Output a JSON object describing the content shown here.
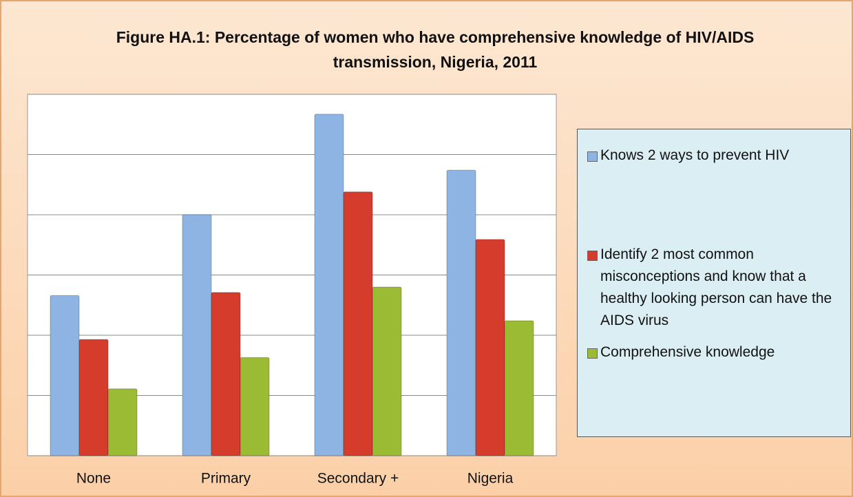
{
  "chart_data": {
    "type": "bar",
    "title": "Figure HA.1: Percentage of women who have comprehensive knowledge of HIV/AIDS transmission, Nigeria, 2011",
    "categories": [
      "None",
      "Primary",
      "Secondary +",
      "Nigeria"
    ],
    "series": [
      {
        "name": "Knows 2 ways to prevent HIV",
        "color": "#8db4e2",
        "values": [
          26.6,
          40.0,
          56.7,
          47.4
        ]
      },
      {
        "name": "Identify 2 most common misconceptions and know that a healthy looking person can have the AIDS virus",
        "color": "#d63c2c",
        "values": [
          19.3,
          27.1,
          43.8,
          35.9
        ]
      },
      {
        "name": "Comprehensive knowledge",
        "color": "#9bbb35",
        "values": [
          11.1,
          16.3,
          28.0,
          22.4
        ]
      }
    ],
    "ylim": [
      0,
      60
    ],
    "yticks": [
      0,
      10,
      20,
      30,
      40,
      50,
      60
    ],
    "grid": true,
    "legend": "right"
  }
}
